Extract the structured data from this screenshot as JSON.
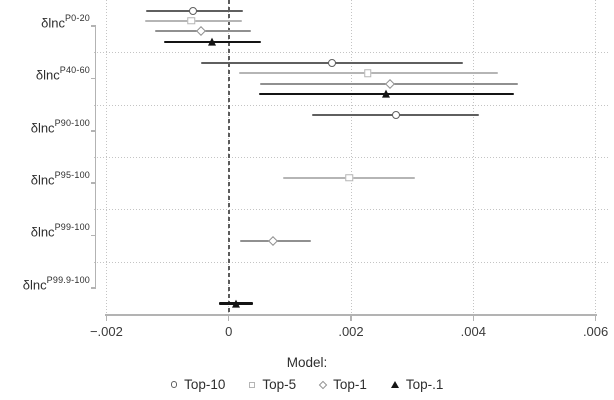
{
  "chart_data": {
    "type": "scatter",
    "style": "horizontal-coefficient-plot-with-confidence-intervals",
    "title": "",
    "xlabel": "",
    "ylabel": "",
    "xlim": [
      -0.00217,
      0.0063
    ],
    "x_ticks": [
      -0.002,
      0,
      0.002,
      0.004,
      0.006
    ],
    "x_tick_labels": [
      "−.002",
      "0",
      ".002",
      ".004",
      ".006"
    ],
    "zero_reference_line": 0,
    "grid": "dotted category separators and dotted vertical gridlines at x ticks",
    "groups": [
      {
        "base": "δlnc",
        "sup": "P0-20"
      },
      {
        "base": "δlnc",
        "sup": "P40-60"
      },
      {
        "base": "δlnc",
        "sup": "P90-100"
      },
      {
        "base": "δlnc",
        "sup": "P95-100"
      },
      {
        "base": "δlnc",
        "sup": "P99-100"
      },
      {
        "base": "δlnc",
        "sup": "P99.9-100"
      }
    ],
    "series": [
      {
        "name": "Top-10",
        "marker": "circle",
        "color": "#5f5f5f",
        "line_width": 2,
        "points": [
          {
            "group": "P0-20",
            "est": -0.00058,
            "lo": -0.00136,
            "hi": 0.00023
          },
          {
            "group": "P40-60",
            "est": 0.00169,
            "lo": -0.00046,
            "hi": 0.00383
          },
          {
            "group": "P90-100",
            "est": 0.00273,
            "lo": 0.00136,
            "hi": 0.00409
          }
        ]
      },
      {
        "name": "Top-5",
        "marker": "square",
        "color": "#b5b5b5",
        "line_width": 2,
        "points": [
          {
            "group": "P0-20",
            "est": -0.00061,
            "lo": -0.00137,
            "hi": 0.00022
          },
          {
            "group": "P40-60",
            "est": 0.00227,
            "lo": 0.00017,
            "hi": 0.0044
          },
          {
            "group": "P95-100",
            "est": 0.00197,
            "lo": 0.00089,
            "hi": 0.00304
          }
        ]
      },
      {
        "name": "Top-1",
        "marker": "diamond",
        "color": "#909090",
        "line_width": 2,
        "points": [
          {
            "group": "P0-20",
            "est": -0.00045,
            "lo": -0.00121,
            "hi": 0.00037
          },
          {
            "group": "P40-60",
            "est": 0.00263,
            "lo": 0.00052,
            "hi": 0.00473
          },
          {
            "group": "P99-100",
            "est": 0.00072,
            "lo": 0.00018,
            "hi": 0.00135
          }
        ]
      },
      {
        "name": "Top-.1",
        "marker": "triangle",
        "color": "#141414",
        "line_width": 2.5,
        "points": [
          {
            "group": "P0-20",
            "est": -0.00027,
            "lo": -0.00105,
            "hi": 0.00053
          },
          {
            "group": "P40-60",
            "est": 0.00258,
            "lo": 0.00049,
            "hi": 0.00467
          },
          {
            "group": "P99.9-100",
            "est": 0.00012,
            "lo": -0.00016,
            "hi": 0.0004
          }
        ]
      }
    ],
    "legend": {
      "title": "Model:",
      "position": "bottom",
      "entries": [
        "Top-10",
        "Top-5",
        "Top-1",
        "Top-.1"
      ]
    },
    "colors": {
      "axis": "#b3b3b3",
      "grid": "#c4c4c4",
      "zero_line": "#5c5c5c",
      "text": "#2e2e2e"
    }
  }
}
